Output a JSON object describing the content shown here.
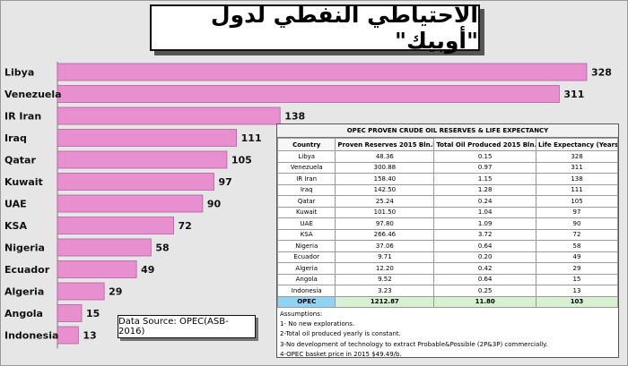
{
  "title": "الاحتياطي النفطي لدول \"أوبيك\"",
  "source_note": "Data Source: OPEC(ASB-2016)",
  "colors": {
    "bar": "#e88fd0",
    "bar_stroke": "#b25fa0",
    "opec_row": "#d7f0d0",
    "opec_cell": "#8fd3f5"
  },
  "chart_data": {
    "type": "bar",
    "orientation": "horizontal",
    "categories": [
      "Libya",
      "Venezuela",
      "IR Iran",
      "Iraq",
      "Qatar",
      "Kuwait",
      "UAE",
      "KSA",
      "Nigeria",
      "Ecuador",
      "Algeria",
      "Angola",
      "Indonesia"
    ],
    "values": [
      328,
      311,
      138,
      111,
      105,
      97,
      90,
      72,
      58,
      49,
      29,
      15,
      13
    ],
    "xlim": [
      0,
      328
    ],
    "grid": false
  },
  "table": {
    "caption": "OPEC PROVEN CRUDE OIL RESERVES & LIFE EXPECTANCY",
    "headers": [
      "Country",
      "Proven Reserves 2015 Bln.bbls",
      "Total Oil Produced 2015  Bln.bbls",
      "Life Expectancy (Years)"
    ],
    "rows": [
      [
        "Libya",
        "48.36",
        "0.15",
        "328"
      ],
      [
        "Venezuela",
        "300.88",
        "0.97",
        "311"
      ],
      [
        "IR Iran",
        "158.40",
        "1.15",
        "138"
      ],
      [
        "Iraq",
        "142.50",
        "1.28",
        "111"
      ],
      [
        "Qatar",
        "25.24",
        "0.24",
        "105"
      ],
      [
        "Kuwait",
        "101.50",
        "1.04",
        "97"
      ],
      [
        "UAE",
        "97.80",
        "1.09",
        "90"
      ],
      [
        "KSA",
        "266.46",
        "3.72",
        "72"
      ],
      [
        "Nigeria",
        "37.06",
        "0.64",
        "58"
      ],
      [
        "Ecuador",
        "9.71",
        "0.20",
        "49"
      ],
      [
        "Algeria",
        "12.20",
        "0.42",
        "29"
      ],
      [
        "Angola",
        "9.52",
        "0.64",
        "15"
      ],
      [
        "Indonesia",
        "3.23",
        "0.25",
        "13"
      ]
    ],
    "total_row": [
      "OPEC",
      "1212.87",
      "11.80",
      "103"
    ],
    "assumptions": [
      "Assumptions:",
      "1- No new explorations.",
      "2-Total oil produced yearly is constant.",
      "3-No development of technology to extract Probable&Possible (2P&3P) commercially.",
      "4-OPEC basket price in 2015 $49.49/b."
    ]
  }
}
